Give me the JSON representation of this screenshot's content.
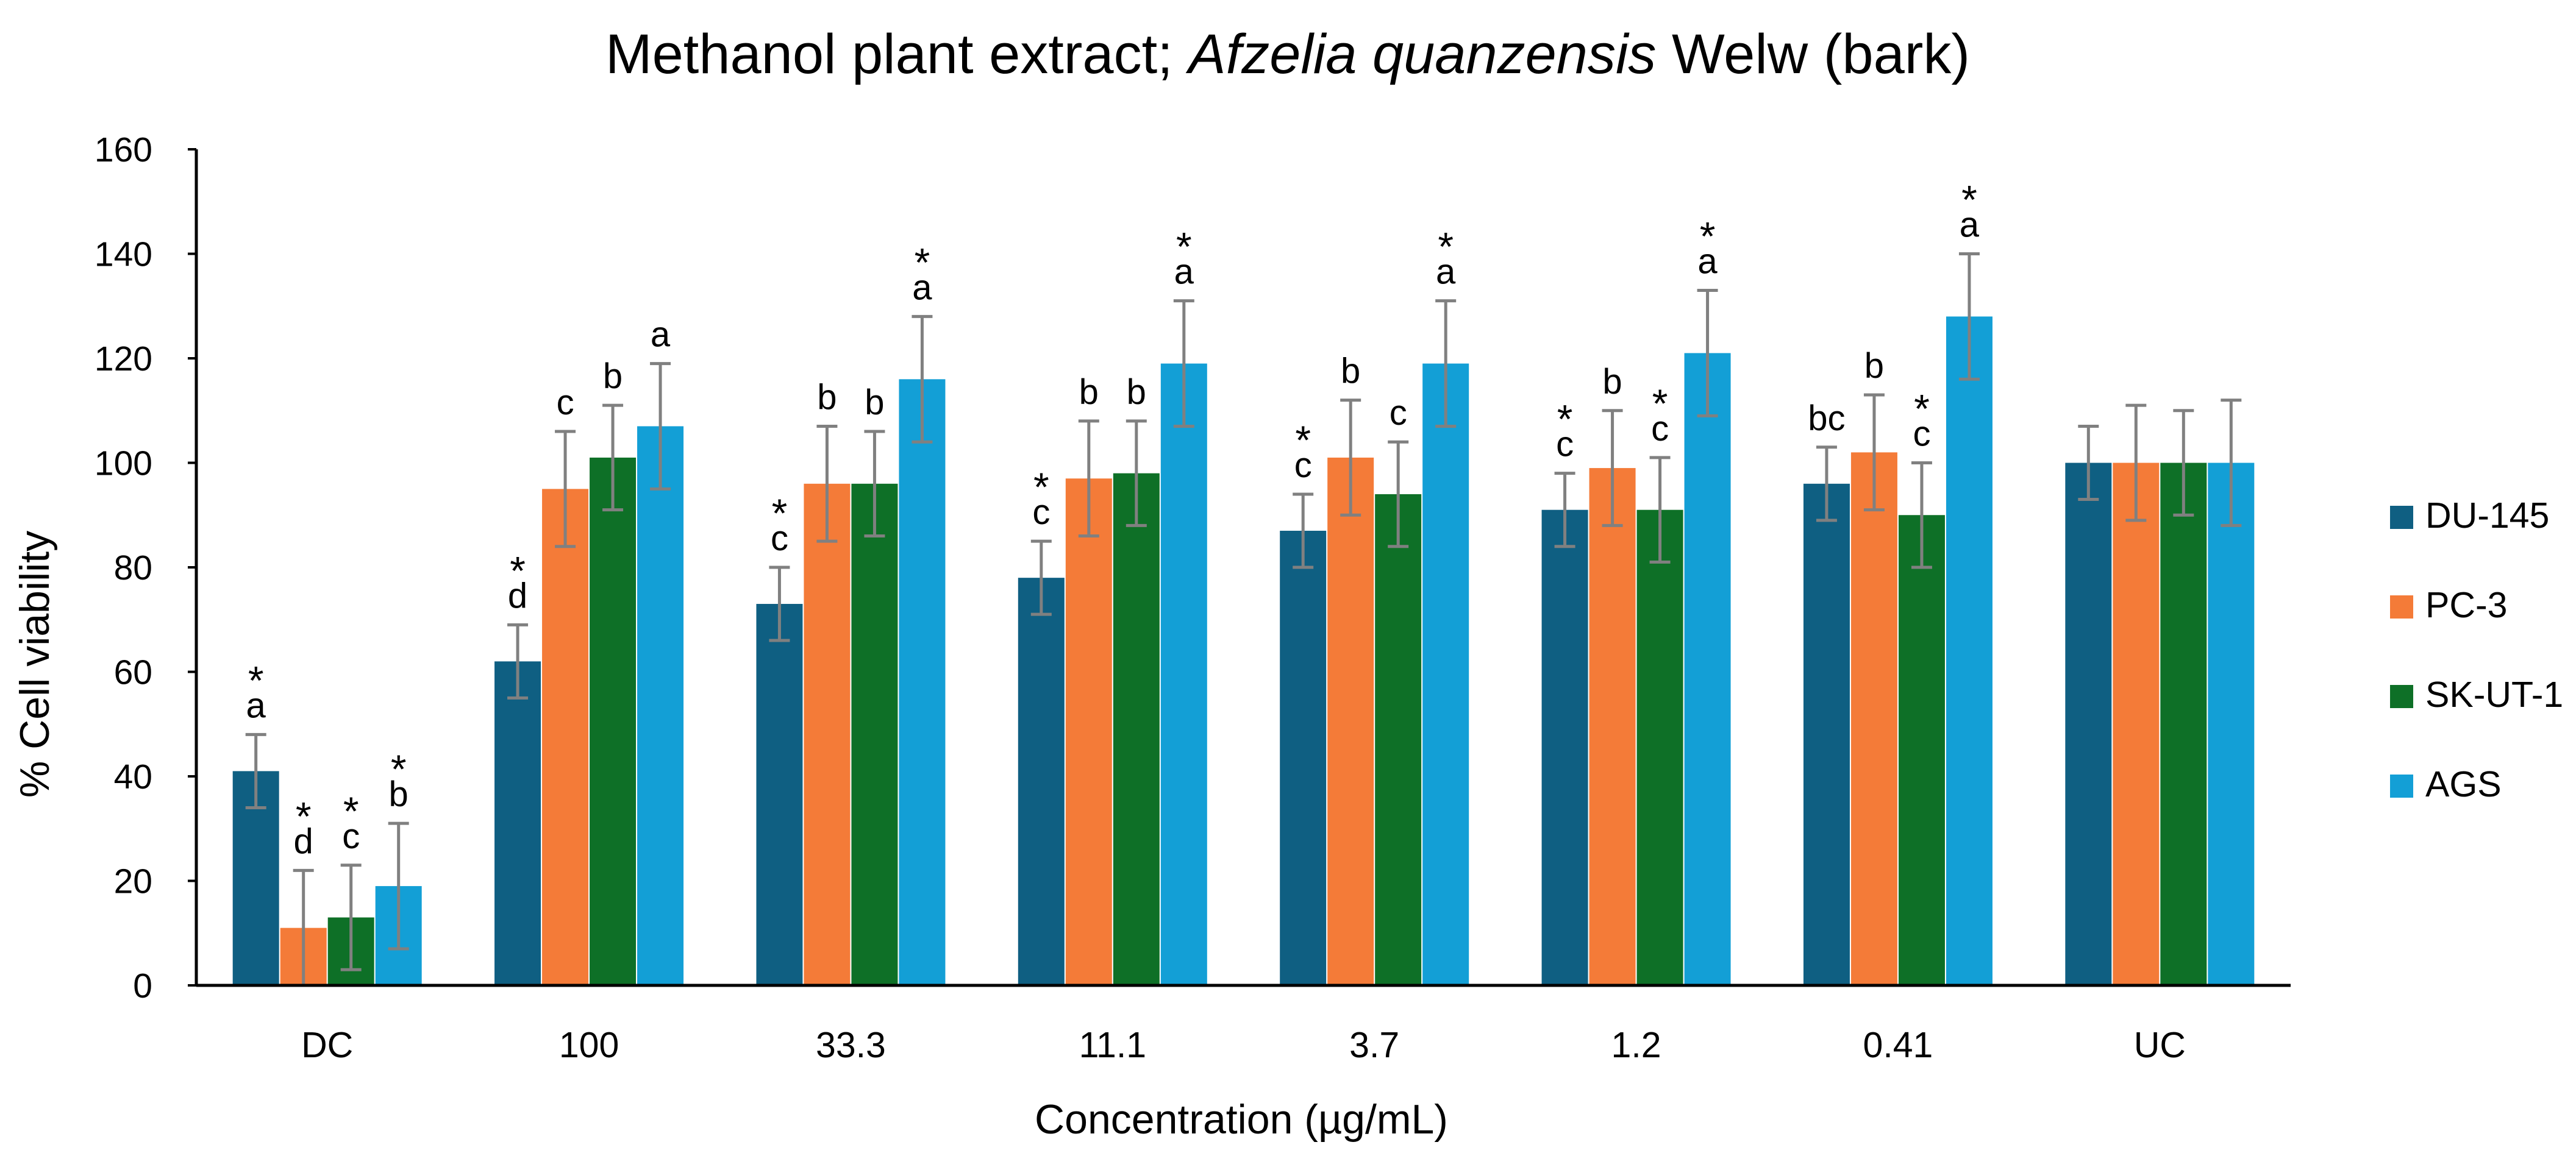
{
  "chart_data": {
    "type": "bar",
    "title": {
      "prefix": "Methanol plant extract; ",
      "italic": "Afzelia quanzensis",
      "suffix": " Welw (bark)"
    },
    "xlabel": "Concentration (µg/mL)",
    "ylabel": "% Cell viability",
    "ylim": [
      0,
      160
    ],
    "yticks": [
      0,
      20,
      40,
      60,
      80,
      100,
      120,
      140,
      160
    ],
    "grid": false,
    "legend_position": "right",
    "categories": [
      "DC",
      "100",
      "33.3",
      "11.1",
      "3.7",
      "1.2",
      "0.41",
      "UC"
    ],
    "series": [
      {
        "name": "DU-145",
        "color": "#0F5F82",
        "values": [
          41,
          62,
          73,
          78,
          87,
          91,
          96,
          100
        ],
        "errors": [
          7,
          7,
          7,
          7,
          7,
          7,
          7,
          7
        ],
        "letters": [
          "a",
          "d",
          "c",
          "c",
          "c",
          "c",
          "bc",
          ""
        ],
        "stars": [
          "*",
          "*",
          "*",
          "*",
          "*",
          "*",
          "",
          ""
        ]
      },
      {
        "name": "PC-3",
        "color": "#F47B38",
        "values": [
          11,
          95,
          96,
          97,
          101,
          99,
          102,
          100
        ],
        "errors": [
          11,
          11,
          11,
          11,
          11,
          11,
          11,
          11
        ],
        "letters": [
          "d",
          "c",
          "b",
          "b",
          "b",
          "b",
          "b",
          ""
        ],
        "stars": [
          "*",
          "",
          "",
          "",
          "",
          "",
          "",
          ""
        ]
      },
      {
        "name": "SK-UT-1",
        "color": "#0E7027",
        "values": [
          13,
          101,
          96,
          98,
          94,
          91,
          90,
          100
        ],
        "errors": [
          10,
          10,
          10,
          10,
          10,
          10,
          10,
          10
        ],
        "letters": [
          "c",
          "b",
          "b",
          "b",
          "c",
          "c",
          "c",
          ""
        ],
        "stars": [
          "*",
          "",
          "",
          "",
          "",
          "*",
          "*",
          ""
        ]
      },
      {
        "name": "AGS",
        "color": "#139FD6",
        "values": [
          19,
          107,
          116,
          119,
          119,
          121,
          128,
          100
        ],
        "errors": [
          12,
          12,
          12,
          12,
          12,
          12,
          12,
          12
        ],
        "letters": [
          "b",
          "a",
          "a",
          "a",
          "a",
          "a",
          "a",
          ""
        ],
        "stars": [
          "*",
          "",
          "*",
          "*",
          "*",
          "*",
          "*",
          ""
        ]
      }
    ]
  }
}
